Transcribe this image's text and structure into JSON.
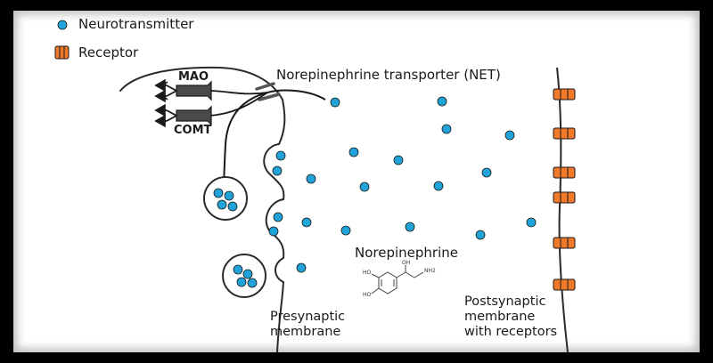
{
  "legend": {
    "neurotransmitter_label": "Neurotransmitter",
    "receptor_label": "Receptor"
  },
  "labels": {
    "net": "Norepinephrine transporter (NET)",
    "mao": "MAO",
    "comt": "COMT",
    "norepinephrine": "Norepinephrine",
    "presynaptic": "Presynaptic\nmembrane",
    "postsynaptic": "Postsynaptic\nmembrane\nwith receptors"
  },
  "structure_labels": {
    "ho_top": "HO",
    "ho_bottom": "HO",
    "oh": "OH",
    "nh2": "NH2"
  },
  "colors": {
    "neurotransmitter": "#1fa3d8",
    "receptor": "#f0782a",
    "enzyme": "#4a4a4a",
    "outline": "#2a2a2a"
  }
}
